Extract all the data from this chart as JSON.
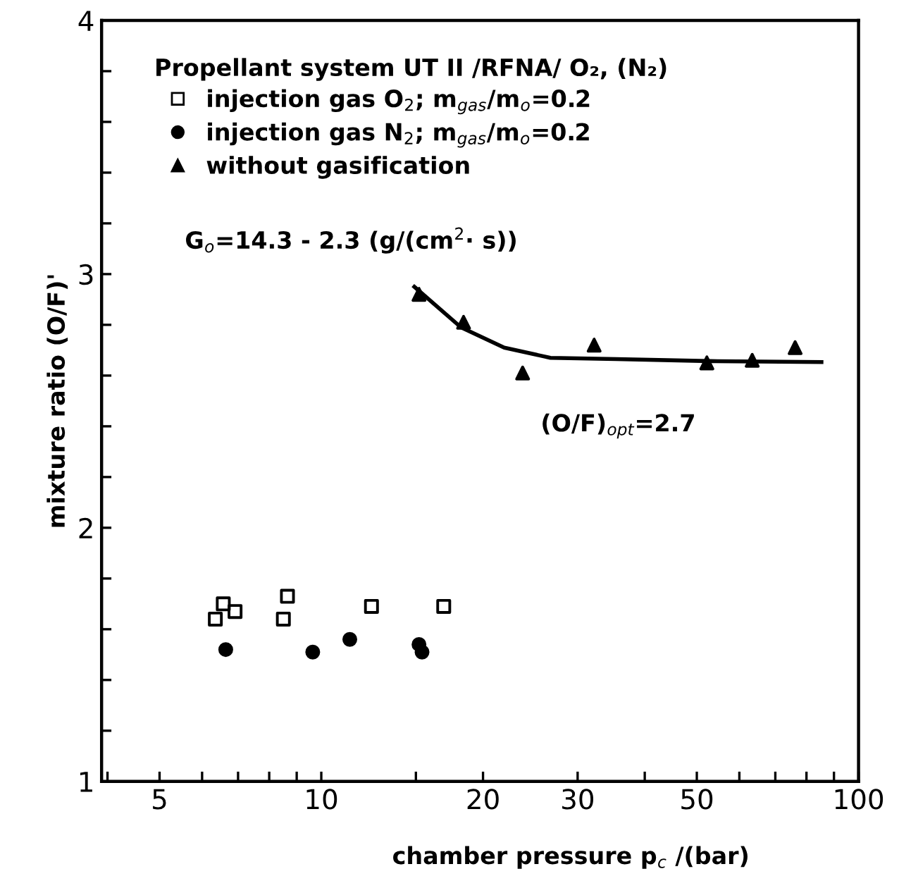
{
  "chart_data": {
    "type": "scatter",
    "xlabel": "chamber pressure p$_{c}$ /(bar)",
    "ylabel": "mixture ratio (O/F)'",
    "legend_title": "Propellant system UT II /RFNA/ O₂, (N₂)",
    "log": "x",
    "xlim": [
      3.9,
      100
    ],
    "xticks": [
      {
        "value": 4,
        "label": null
      },
      5,
      {
        "value": 6,
        "label": null
      },
      {
        "value": 7,
        "label": null
      },
      {
        "value": 8,
        "label": null
      },
      {
        "value": 9,
        "label": null
      },
      10,
      {
        "value": 15,
        "label": null
      },
      20,
      30,
      {
        "value": 40,
        "label": null
      },
      50,
      {
        "value": 60,
        "label": null
      },
      {
        "value": 70,
        "label": null
      },
      {
        "value": 80,
        "label": null
      },
      {
        "value": 90,
        "label": null
      },
      100
    ],
    "ylim": [
      1,
      4
    ],
    "yticks": [
      1,
      {
        "value": 1.2,
        "label": null
      },
      {
        "value": 1.4,
        "label": null
      },
      {
        "value": 1.6,
        "label": null
      },
      {
        "value": 1.8,
        "label": null
      },
      2,
      {
        "value": 2.2,
        "label": null
      },
      {
        "value": 2.4,
        "label": null
      },
      {
        "value": 2.6,
        "label": null
      },
      {
        "value": 2.8,
        "label": null
      },
      3,
      {
        "value": 3.2,
        "label": null
      },
      {
        "value": 3.4,
        "label": null
      },
      {
        "value": 3.6,
        "label": null
      },
      {
        "value": 3.8,
        "label": null
      },
      4
    ],
    "grid": false,
    "legend": "top left",
    "series": [
      {
        "name": "injection gas O$_{2}$; m$_{gas}$/m$_{o}$=0.2",
        "color": "#000000",
        "marker": "square",
        "x": [
          6.35,
          6.57,
          6.91,
          8.5,
          8.65,
          12.4,
          16.9
        ],
        "values": [
          1.64,
          1.7,
          1.67,
          1.64,
          1.73,
          1.69,
          1.69
        ]
      },
      {
        "name": "injection gas N$_{2}$; m$_{gas}$/m$_{o}$=0.2",
        "color": "#000000",
        "marker": "circle",
        "x": [
          6.64,
          9.64,
          11.3,
          15.2,
          15.4
        ],
        "values": [
          1.52,
          1.51,
          1.56,
          1.54,
          1.51
        ]
      },
      {
        "name": "without gasification",
        "color": "#000000",
        "marker": "triangle",
        "x": [
          15.2,
          18.4,
          23.7,
          32.2,
          52.2,
          63.4,
          76.2
        ],
        "values": [
          2.92,
          2.81,
          2.61,
          2.72,
          2.65,
          2.66,
          2.71
        ]
      },
      {
        "type": "line",
        "color": "#000000",
        "marker": "none",
        "line_style": "solid",
        "x": [
          14.9,
          18.2,
          21.9,
          26.7,
          35.4,
          52.8,
          85.3
        ],
        "values": [
          2.95,
          2.79,
          2.71,
          2.67,
          2.665,
          2.657,
          2.653
        ]
      }
    ],
    "annotations": [
      "G$_{o}$=14.3 - 2.3 (g/(cm$^{2}$· s))",
      "(O/F)$_{opt}$=2.7"
    ]
  }
}
